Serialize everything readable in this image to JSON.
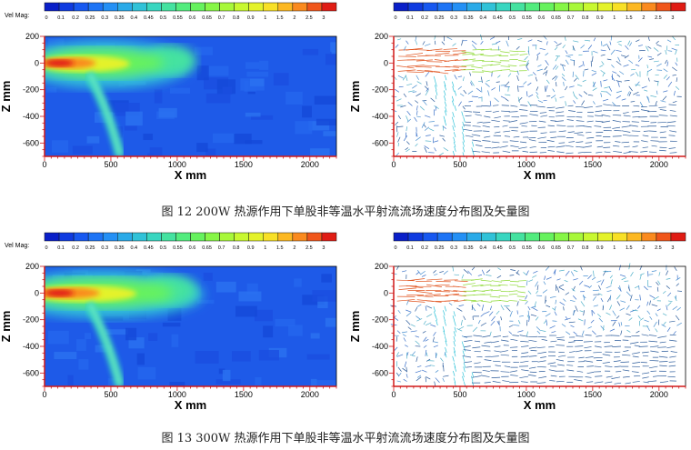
{
  "legend": {
    "label": "Vel Mag:",
    "ticks": [
      "0",
      "0.1",
      "0.2",
      "0.25",
      "0.3",
      "0.35",
      "0.4",
      "0.45",
      "0.5",
      "0.55",
      "0.6",
      "0.65",
      "0.7",
      "0.8",
      "0.9",
      "1",
      "1.5",
      "2",
      "2.5",
      "3"
    ],
    "colors": [
      "#0a1fc8",
      "#0f3be0",
      "#1758f0",
      "#1e74f5",
      "#2490f5",
      "#2aaae8",
      "#30c2d8",
      "#38d6c0",
      "#44e2a0",
      "#52ec7e",
      "#66f25e",
      "#86f646",
      "#a8f83a",
      "#c8f830",
      "#e4f22a",
      "#f8e026",
      "#fcb822",
      "#fa8a1e",
      "#f0561a",
      "#e01c14"
    ]
  },
  "axes": {
    "x_label": "X mm",
    "y_label": "Z mm",
    "x_ticks": [
      "0",
      "500",
      "1000",
      "1500",
      "2000"
    ],
    "y_ticks": [
      "200",
      "0",
      "-200",
      "-400",
      "-600"
    ]
  },
  "captions": {
    "fig12": "图 12  200W 热源作用下单股非等温水平射流流场速度分布图及矢量图",
    "fig13": "图 13  300W 热源作用下单股非等温水平射流流场速度分布图及矢量图"
  }
}
